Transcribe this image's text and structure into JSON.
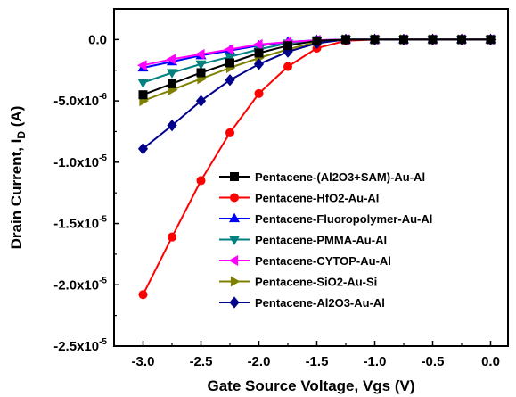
{
  "chart_data": {
    "type": "line",
    "title": "",
    "xlabel": "Gate Source Voltage, Vgs (V)",
    "ylabel_main": "Drain Current, I",
    "ylabel_sub": "D",
    "ylabel_unit": " (A)",
    "xlim": [
      -3.25,
      0.15
    ],
    "ylim": [
      -2.5e-05,
      2.5e-06
    ],
    "x_ticks": [
      {
        "value": -3.0,
        "label": "-3.0"
      },
      {
        "value": -2.5,
        "label": "-2.5"
      },
      {
        "value": -2.0,
        "label": "-2.0"
      },
      {
        "value": -1.5,
        "label": "-1.5"
      },
      {
        "value": -1.0,
        "label": "-1.0"
      },
      {
        "value": -0.5,
        "label": "-0.5"
      },
      {
        "value": 0.0,
        "label": "0.0"
      }
    ],
    "y_ticks": [
      {
        "value": 0,
        "mantissa": "0.0",
        "exp": ""
      },
      {
        "value": -5e-06,
        "mantissa": "-5.0x10",
        "exp": "-6"
      },
      {
        "value": -1e-05,
        "mantissa": "-1.0x10",
        "exp": "-5"
      },
      {
        "value": -1.5e-05,
        "mantissa": "-1.5x10",
        "exp": "-5"
      },
      {
        "value": -2e-05,
        "mantissa": "-2.0x10",
        "exp": "-5"
      },
      {
        "value": -2.5e-05,
        "mantissa": "-2.5x10",
        "exp": "-5"
      }
    ],
    "legend_position": "center-right",
    "grid": false,
    "x": [
      -3.0,
      -2.75,
      -2.5,
      -2.25,
      -2.0,
      -1.75,
      -1.5,
      -1.25,
      -1.0,
      -0.75,
      -0.5,
      -0.25,
      0.0
    ],
    "series": [
      {
        "name": "Pentacene-(Al2O3+SAM)-Au-Al",
        "color": "#000000",
        "marker": "square",
        "values": [
          -4.5e-06,
          -3.6e-06,
          -2.7e-06,
          -1.9e-06,
          -1.1e-06,
          -5e-07,
          -1e-07,
          0,
          0,
          0,
          0,
          0,
          0
        ]
      },
      {
        "name": "Pentacene-HfO2-Au-Al",
        "color": "#ff0000",
        "marker": "circle",
        "values": [
          -2.08e-05,
          -1.61e-05,
          -1.15e-05,
          -7.6e-06,
          -4.4e-06,
          -2.2e-06,
          -7e-07,
          -1e-07,
          0,
          0,
          0,
          0,
          0
        ]
      },
      {
        "name": "Pentacene-Fluoropolymer-Au-Al",
        "color": "#0000ff",
        "marker": "triangle-up",
        "values": [
          -2.3e-06,
          -1.8e-06,
          -1.3e-06,
          -9e-07,
          -5e-07,
          -2e-07,
          -5e-08,
          0,
          0,
          0,
          0,
          0,
          0
        ]
      },
      {
        "name": "Pentacene-PMMA-Au-Al",
        "color": "#008080",
        "marker": "triangle-down",
        "values": [
          -3.5e-06,
          -2.7e-06,
          -2e-06,
          -1.4e-06,
          -8e-07,
          -3e-07,
          -1e-07,
          0,
          0,
          0,
          0,
          0,
          0
        ]
      },
      {
        "name": "Pentacene-CYTOP-Au-Al",
        "color": "#ff00ff",
        "marker": "triangle-left",
        "values": [
          -2.1e-06,
          -1.6e-06,
          -1.2e-06,
          -8e-07,
          -4e-07,
          -2e-07,
          -5e-08,
          0,
          0,
          0,
          0,
          0,
          0
        ]
      },
      {
        "name": "Pentacene-SiO2-Au-Si",
        "color": "#808000",
        "marker": "triangle-right",
        "values": [
          -5e-06,
          -4.1e-06,
          -3.2e-06,
          -2.3e-06,
          -1.5e-06,
          -8e-07,
          -2e-07,
          0,
          0,
          0,
          0,
          0,
          0
        ]
      },
      {
        "name": "Pentacene-Al2O3-Au-Al",
        "color": "#00008b",
        "marker": "diamond",
        "values": [
          -8.9e-06,
          -7e-06,
          -5e-06,
          -3.3e-06,
          -2e-06,
          -1e-06,
          -3e-07,
          0,
          0,
          0,
          0,
          0,
          0
        ]
      }
    ]
  }
}
